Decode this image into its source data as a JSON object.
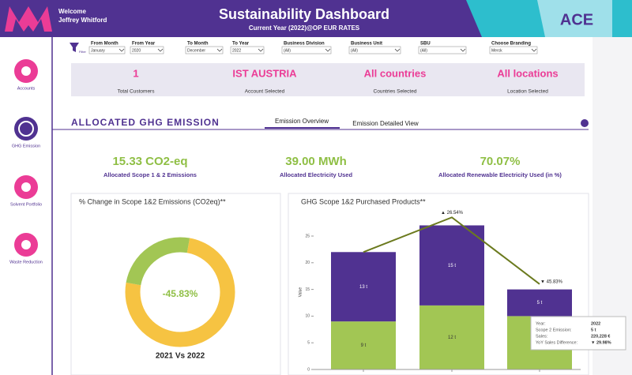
{
  "header": {
    "welcome": "Welcome",
    "user": "Jeffrey Whitford",
    "title": "Sustainability Dashboard",
    "subtitle": "Current Year (2022)@OP EUR RATES",
    "brand": "ACE"
  },
  "sidebar": [
    {
      "label": "Accounts"
    },
    {
      "label": "GHG Emission"
    },
    {
      "label": "Solvent Portfolio"
    },
    {
      "label": "Waste Reduction"
    }
  ],
  "filters": [
    {
      "label": "From Month",
      "value": "January"
    },
    {
      "label": "From Year",
      "value": "2020"
    },
    {
      "label": "To Month",
      "value": "December"
    },
    {
      "label": "To Year",
      "value": "2022"
    },
    {
      "label": "Business Division",
      "value": "(All)"
    },
    {
      "label": "Business Unit",
      "value": "(All)"
    },
    {
      "label": "SBU",
      "value": "(All)"
    },
    {
      "label": "Choose Branding",
      "value": "Merck"
    }
  ],
  "filter_icon_label": "Filter",
  "summary": [
    {
      "value": 1,
      "label": "Total Customers"
    },
    {
      "value": "IST AUSTRIA",
      "label": "Account Selected"
    },
    {
      "value": "All countries",
      "label": "Countries Selected"
    },
    {
      "value": "All locations",
      "label": "Location Selected"
    }
  ],
  "section": {
    "title": "ALLOCATED GHG EMISSION",
    "tabs": [
      "Emission Overview",
      "Emission Detailed View"
    ]
  },
  "kpis": [
    {
      "value": "15.33 CO2-eq",
      "label": "Allocated Scope 1 & 2 Emissions"
    },
    {
      "value": "39.00 MWh",
      "label": "Allocated Electricity Used"
    },
    {
      "value": "70.07%",
      "label": "Allocated Renewable Electricity Used (in %)"
    }
  ],
  "chart_data": [
    {
      "type": "donut",
      "title": "% Change in Scope 1&2 Emissions (CO2eq)**",
      "center_label": "-45.83%",
      "caption": "2021 Vs 2022",
      "values": [
        75,
        25
      ],
      "colors": [
        "#f6c342",
        "#a2c654"
      ]
    },
    {
      "type": "bar",
      "stacked": true,
      "title": "GHG Scope 1&2 Purchased Products**",
      "ylabel": "Value",
      "categories": [
        null,
        null,
        null
      ],
      "ylim": [
        0,
        25
      ],
      "yticks": [
        0,
        5,
        10,
        15,
        20,
        25
      ],
      "series": [
        {
          "color": "#a2c654",
          "values": [
            9,
            12,
            10
          ],
          "value_labels": [
            "9 t",
            "12 t",
            null
          ]
        },
        {
          "color": "#503291",
          "values": [
            13,
            15,
            5
          ],
          "value_labels": [
            "13 t",
            "15 t",
            "5 t"
          ]
        },
        {
          "type": "line",
          "color": "#6b7a1e",
          "values": [
            22,
            28.5,
            16
          ]
        }
      ],
      "annotations": [
        "▲ 26.54%",
        "▼ 45.83%"
      ]
    }
  ],
  "tooltip": [
    {
      "key": "Year:",
      "value": "2022"
    },
    {
      "key": "Scope 2 Emission:",
      "value": "5 t"
    },
    {
      "key": "Sales:",
      "value": "220,228 €"
    },
    {
      "key": "YoY Sales Difference:",
      "value": "▼ 29.98%"
    }
  ]
}
